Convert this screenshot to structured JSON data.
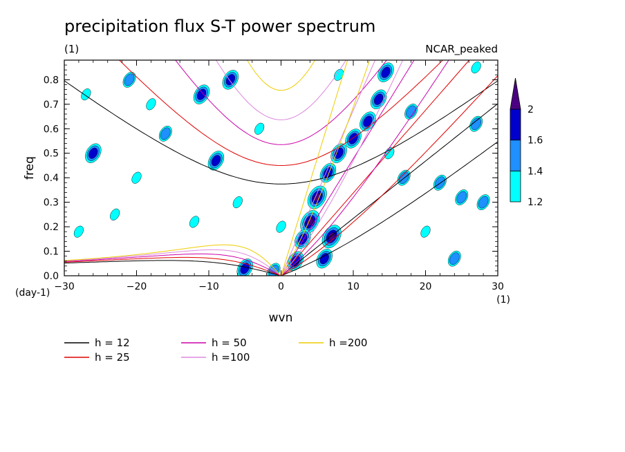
{
  "chart_data": {
    "type": "heatmap",
    "title": "precipitation flux S-T power spectrum",
    "subtitle_left": "(1)",
    "subtitle_right": "NCAR_peaked",
    "xlabel": "wvn",
    "ylabel": "freq",
    "x_unit": "(1)",
    "y_unit": "(day-1)",
    "xlim": [
      -30,
      30
    ],
    "ylim": [
      0,
      0.88
    ],
    "x_ticks": [
      "−30",
      "−20",
      "−10",
      "0",
      "10",
      "20",
      "30"
    ],
    "x_tick_values": [
      -30,
      -20,
      -10,
      0,
      10,
      20,
      30
    ],
    "y_ticks": [
      "0.0",
      "0.1",
      "0.2",
      "0.3",
      "0.4",
      "0.5",
      "0.6",
      "0.7",
      "0.8"
    ],
    "y_tick_values": [
      0,
      0.1,
      0.2,
      0.3,
      0.4,
      0.5,
      0.6,
      0.7,
      0.8
    ],
    "colorbar": {
      "levels": [
        "1.2",
        "1.4",
        "1.6",
        "2"
      ],
      "level_values": [
        1.2,
        1.4,
        1.6,
        2.0
      ],
      "colors": [
        "#00ffff",
        "#1e90ff",
        "#0000cd",
        "#4b0082"
      ]
    },
    "dispersion_curves": [
      {
        "label": "h = 12",
        "h": 12,
        "color": "#000000"
      },
      {
        "label": "h = 25",
        "h": 25,
        "color": "#e00000"
      },
      {
        "label": "h = 50",
        "h": 50,
        "color": "#cc00aa"
      },
      {
        "label": "h =100",
        "h": 100,
        "color": "#dd88dd"
      },
      {
        "label": "h =200",
        "h": 200,
        "color": "#eecc00"
      }
    ],
    "power_blobs": [
      {
        "k": 5.0,
        "f": 0.32,
        "level": 2.0
      },
      {
        "k": 4.0,
        "f": 0.22,
        "level": 2.0
      },
      {
        "k": 3.0,
        "f": 0.15,
        "level": 1.6
      },
      {
        "k": 6.5,
        "f": 0.42,
        "level": 1.6
      },
      {
        "k": 8.0,
        "f": 0.5,
        "level": 1.6
      },
      {
        "k": 10.0,
        "f": 0.56,
        "level": 1.6
      },
      {
        "k": 12.0,
        "f": 0.63,
        "level": 1.6
      },
      {
        "k": 13.5,
        "f": 0.72,
        "level": 1.6
      },
      {
        "k": 14.5,
        "f": 0.83,
        "level": 1.6
      },
      {
        "k": 7.0,
        "f": 0.16,
        "level": 2.0
      },
      {
        "k": 6.0,
        "f": 0.07,
        "level": 1.6
      },
      {
        "k": -5.0,
        "f": 0.03,
        "level": 1.6
      },
      {
        "k": -1.0,
        "f": 0.02,
        "level": 1.4
      },
      {
        "k": 2.0,
        "f": 0.06,
        "level": 1.6
      },
      {
        "k": -11.0,
        "f": 0.74,
        "level": 1.6
      },
      {
        "k": -9.0,
        "f": 0.47,
        "level": 1.6
      },
      {
        "k": -7.0,
        "f": 0.8,
        "level": 1.6
      },
      {
        "k": -21.0,
        "f": 0.8,
        "level": 1.4
      },
      {
        "k": -26.0,
        "f": 0.5,
        "level": 1.6
      },
      {
        "k": -16.0,
        "f": 0.58,
        "level": 1.4
      },
      {
        "k": 22.0,
        "f": 0.38,
        "level": 1.4
      },
      {
        "k": 25.0,
        "f": 0.32,
        "level": 1.4
      },
      {
        "k": 27.0,
        "f": 0.62,
        "level": 1.4
      },
      {
        "k": 24.0,
        "f": 0.07,
        "level": 1.4
      },
      {
        "k": 28.0,
        "f": 0.3,
        "level": 1.4
      },
      {
        "k": 18.0,
        "f": 0.67,
        "level": 1.4
      },
      {
        "k": 17.0,
        "f": 0.4,
        "level": 1.4
      },
      {
        "k": 20.0,
        "f": 0.18,
        "level": 1.2
      },
      {
        "k": -20.0,
        "f": 0.4,
        "level": 1.2
      },
      {
        "k": -23.0,
        "f": 0.25,
        "level": 1.2
      },
      {
        "k": -28.0,
        "f": 0.18,
        "level": 1.2
      },
      {
        "k": -12.0,
        "f": 0.22,
        "level": 1.2
      },
      {
        "k": -6.0,
        "f": 0.3,
        "level": 1.2
      },
      {
        "k": -18.0,
        "f": 0.7,
        "level": 1.2
      },
      {
        "k": -27.0,
        "f": 0.74,
        "level": 1.2
      },
      {
        "k": 8.0,
        "f": 0.82,
        "level": 1.2
      },
      {
        "k": 15.0,
        "f": 0.5,
        "level": 1.2
      },
      {
        "k": 27.0,
        "f": 0.85,
        "level": 1.2
      },
      {
        "k": -3.0,
        "f": 0.6,
        "level": 1.2
      },
      {
        "k": 0.0,
        "f": 0.2,
        "level": 1.2
      }
    ]
  }
}
